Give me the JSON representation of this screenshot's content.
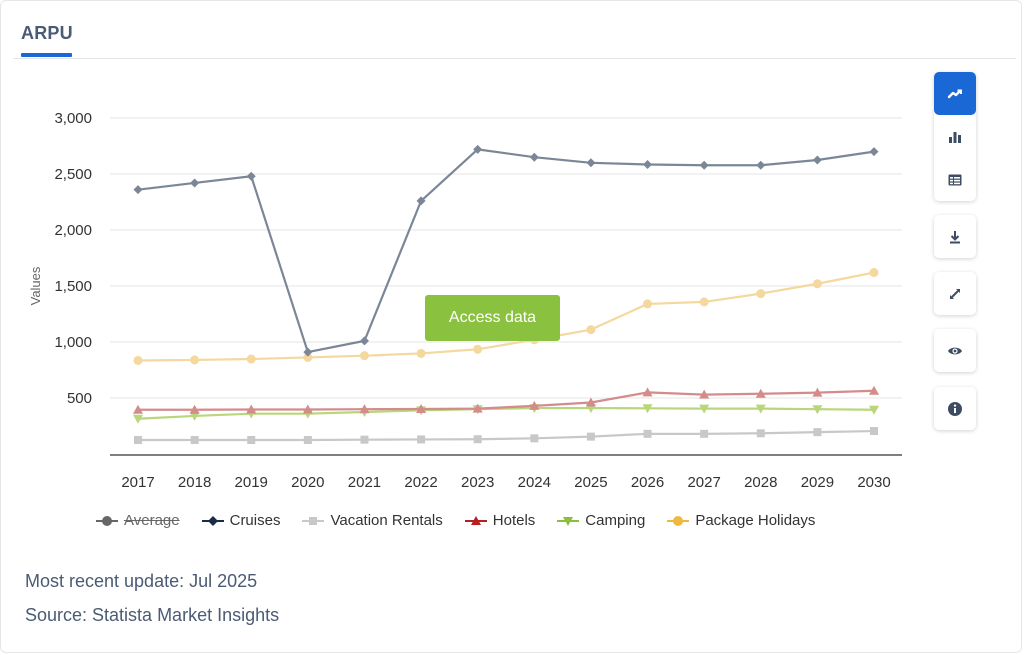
{
  "tab": {
    "label": "ARPU"
  },
  "access_button": {
    "label": "Access data"
  },
  "meta": {
    "update": "Most recent update: Jul 2025",
    "source": "Source: Statista Market Insights"
  },
  "toolbar": {
    "icons": [
      "line-chart-icon",
      "bar-chart-icon",
      "table-icon",
      "download-icon",
      "fullscreen-icon",
      "eye-icon",
      "info-icon"
    ],
    "active": "line-chart-icon",
    "accent": "#1a68d6",
    "icon_color": "#3d4c63"
  },
  "chart_data": {
    "type": "line",
    "title": "",
    "xlabel": "",
    "ylabel": "Values",
    "x": [
      "2017",
      "2018",
      "2019",
      "2020",
      "2021",
      "2022",
      "2023",
      "2024",
      "2025",
      "2026",
      "2027",
      "2028",
      "2029",
      "2030"
    ],
    "ylim": [
      0,
      3000
    ],
    "yticks": [
      500,
      1000,
      1500,
      2000,
      2500,
      3000
    ],
    "ytick_labels": [
      "500",
      "1,000",
      "1,500",
      "2,000",
      "2,500",
      "3,000"
    ],
    "grid": true,
    "legend_position": "bottom",
    "series": [
      {
        "name": "Average",
        "color": "#666666",
        "marker": "circle",
        "hidden": true,
        "values": null
      },
      {
        "name": "Cruises",
        "color": "#7b8796",
        "legend_color": "#1c2b45",
        "marker": "diamond",
        "values": [
          2360,
          2420,
          2480,
          910,
          1010,
          2260,
          2720,
          2650,
          2600,
          2585,
          2578,
          2578,
          2625,
          2700
        ]
      },
      {
        "name": "Vacation Rentals",
        "color": "#c8c8c8",
        "marker": "square",
        "values": [
          125,
          125,
          125,
          125,
          128,
          130,
          132,
          140,
          155,
          180,
          180,
          185,
          195,
          205
        ]
      },
      {
        "name": "Hotels",
        "color": "#d48b8b",
        "legend_color": "#b52020",
        "marker": "triangle-up",
        "values": [
          395,
          395,
          397,
          397,
          400,
          402,
          405,
          430,
          460,
          550,
          530,
          538,
          548,
          565
        ]
      },
      {
        "name": "Camping",
        "color": "#b8d67a",
        "legend_color": "#8cbf3f",
        "marker": "triangle-down",
        "values": [
          315,
          340,
          360,
          360,
          375,
          390,
          400,
          410,
          410,
          408,
          405,
          405,
          400,
          395
        ]
      },
      {
        "name": "Package Holidays",
        "color": "#f4d89e",
        "legend_color": "#efb93f",
        "marker": "circle",
        "values": [
          835,
          840,
          848,
          862,
          878,
          898,
          935,
          1020,
          1110,
          1340,
          1358,
          1432,
          1520,
          1620
        ]
      }
    ]
  }
}
